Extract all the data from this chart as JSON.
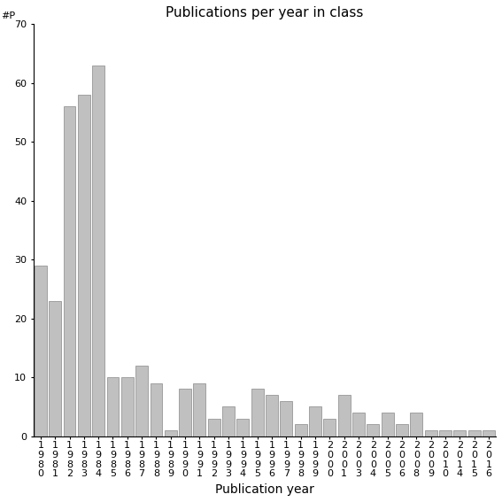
{
  "categories": [
    "1980",
    "1981",
    "1982",
    "1983",
    "1984",
    "1985",
    "1986",
    "1987",
    "1988",
    "1989",
    "1990",
    "1991",
    "1992",
    "1993",
    "1994",
    "1995",
    "1996",
    "1997",
    "1998",
    "1999",
    "2000",
    "2001",
    "2003",
    "2004",
    "2005",
    "2006",
    "2008",
    "2009",
    "2010",
    "2014",
    "2015",
    "2016"
  ],
  "values": [
    29,
    23,
    56,
    58,
    63,
    10,
    10,
    12,
    9,
    1,
    8,
    9,
    3,
    5,
    3,
    8,
    7,
    6,
    2,
    5,
    3,
    7,
    4,
    2,
    4,
    2,
    4,
    1,
    1,
    1,
    1,
    1
  ],
  "bar_color": "#c0c0c0",
  "bar_edgecolor": "#888888",
  "title": "Publications per year in class",
  "xlabel": "Publication year",
  "ylabel_label": "#P",
  "ylim": [
    0,
    70
  ],
  "yticks": [
    0,
    10,
    20,
    30,
    40,
    50,
    60,
    70
  ],
  "title_fontsize": 11,
  "axis_label_fontsize": 10,
  "tick_fontsize": 8,
  "background_color": "#ffffff"
}
